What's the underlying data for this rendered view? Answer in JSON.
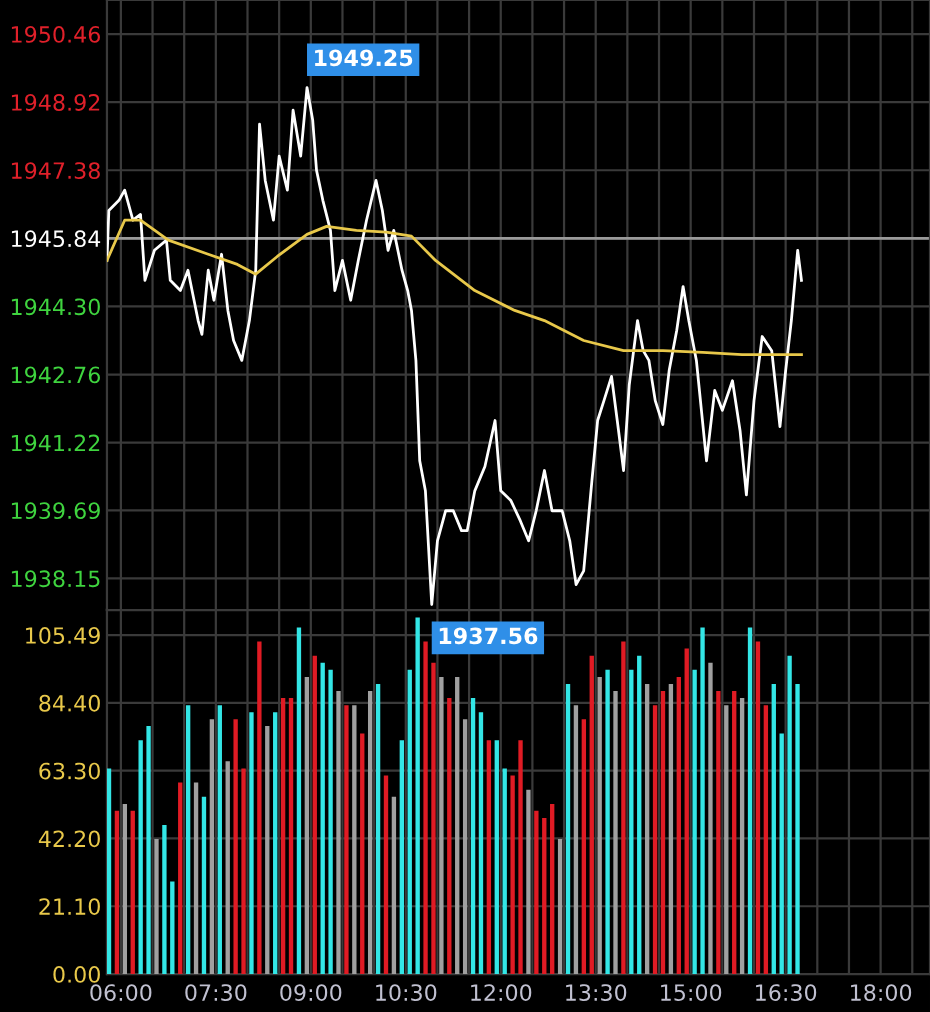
{
  "chart_data": [
    {
      "type": "line",
      "xlim": [
        5.78,
        18.78
      ],
      "ylim": [
        1937.43,
        1951.23
      ],
      "tick_labels": "y",
      "grid": true,
      "legend": false,
      "xticks": [
        {
          "value": 6,
          "label": null
        },
        {
          "value": 6.5,
          "label": null
        },
        {
          "value": 7,
          "label": null
        },
        {
          "value": 7.5,
          "label": null
        },
        {
          "value": 8,
          "label": null
        },
        {
          "value": 8.5,
          "label": null
        },
        {
          "value": 9,
          "label": null
        },
        {
          "value": 9.5,
          "label": null
        },
        {
          "value": 10,
          "label": null
        },
        {
          "value": 10.5,
          "label": null
        },
        {
          "value": 11,
          "label": null
        },
        {
          "value": 11.5,
          "label": null
        },
        {
          "value": 12,
          "label": null
        },
        {
          "value": 12.5,
          "label": null
        },
        {
          "value": 13,
          "label": null
        },
        {
          "value": 13.5,
          "label": null
        },
        {
          "value": 14,
          "label": null
        },
        {
          "value": 14.5,
          "label": null
        },
        {
          "value": 15,
          "label": null
        },
        {
          "value": 15.5,
          "label": null
        },
        {
          "value": 16,
          "label": null
        },
        {
          "value": 16.5,
          "label": null
        },
        {
          "value": 17,
          "label": null
        },
        {
          "value": 17.5,
          "label": null
        },
        {
          "value": 18,
          "label": null
        },
        {
          "value": 18.5,
          "label": null
        }
      ],
      "yticks": [
        {
          "value": 1938.15,
          "label": "1938.15"
        },
        {
          "value": 1939.69,
          "label": "1939.69"
        },
        {
          "value": 1941.22,
          "label": "1941.22"
        },
        {
          "value": 1942.76,
          "label": "1942.76"
        },
        {
          "value": 1944.3,
          "label": "1944.30"
        },
        {
          "value": 1945.84,
          "label": "1945.84"
        },
        {
          "value": 1947.38,
          "label": "1947.38"
        },
        {
          "value": 1948.92,
          "label": "1948.92"
        },
        {
          "value": 1950.46,
          "label": "1950.46"
        }
      ],
      "ref_lines": [
        {
          "axis": "y",
          "value": 1945.84,
          "label": null,
          "color": "#9a9a9a"
        }
      ],
      "annotations": [
        {
          "text": "1949.25",
          "x": 8.94,
          "y": 1949.25
        },
        {
          "text": "1937.56",
          "x": 10.91,
          "y": 1937.56
        }
      ],
      "series": [
        {
          "color": "#ffffff",
          "x": [
            5.78,
            5.81,
            5.97,
            6.06,
            6.19,
            6.31,
            6.38,
            6.53,
            6.72,
            6.78,
            6.94,
            7.06,
            7.22,
            7.28,
            7.38,
            7.47,
            7.59,
            7.69,
            7.78,
            7.91,
            8.03,
            8.13,
            8.19,
            8.28,
            8.41,
            8.5,
            8.63,
            8.72,
            8.84,
            8.94,
            9.03,
            9.09,
            9.19,
            9.31,
            9.38,
            9.5,
            9.63,
            9.75,
            9.88,
            10.03,
            10.13,
            10.22,
            10.31,
            10.44,
            10.53,
            10.59,
            10.66,
            10.72,
            10.81,
            10.91,
            11.0,
            11.13,
            11.25,
            11.38,
            11.47,
            11.59,
            11.75,
            11.91,
            12.0,
            12.16,
            12.31,
            12.44,
            12.56,
            12.69,
            12.81,
            12.97,
            13.09,
            13.19,
            13.31,
            13.44,
            13.53,
            13.63,
            13.75,
            13.84,
            13.94,
            14.03,
            14.16,
            14.25,
            14.34,
            14.44,
            14.56,
            14.66,
            14.78,
            14.88,
            14.97,
            15.09,
            15.25,
            15.38,
            15.5,
            15.66,
            15.78,
            15.88,
            16.0,
            16.13,
            16.28,
            16.41,
            16.5,
            16.59,
            16.69,
            16.75
          ],
          "values": [
            1945.34,
            1946.47,
            1946.7,
            1946.93,
            1946.25,
            1946.38,
            1944.89,
            1945.57,
            1945.8,
            1944.89,
            1944.66,
            1945.12,
            1943.98,
            1943.67,
            1945.12,
            1944.44,
            1945.48,
            1944.21,
            1943.53,
            1943.08,
            1943.98,
            1945.12,
            1948.42,
            1947.15,
            1946.25,
            1947.7,
            1946.93,
            1948.74,
            1947.7,
            1949.25,
            1948.51,
            1947.38,
            1946.7,
            1946.02,
            1944.66,
            1945.34,
            1944.44,
            1945.34,
            1946.25,
            1947.15,
            1946.47,
            1945.57,
            1946.02,
            1945.12,
            1944.66,
            1944.21,
            1943.08,
            1940.81,
            1940.13,
            1937.56,
            1939.0,
            1939.68,
            1939.68,
            1939.23,
            1939.23,
            1940.13,
            1940.68,
            1941.72,
            1940.13,
            1939.91,
            1939.45,
            1939.0,
            1939.68,
            1940.59,
            1939.68,
            1939.68,
            1939.0,
            1938.01,
            1938.32,
            1940.36,
            1941.72,
            1942.17,
            1942.72,
            1941.72,
            1940.59,
            1942.53,
            1943.98,
            1943.3,
            1943.08,
            1942.17,
            1941.63,
            1942.85,
            1943.76,
            1944.75,
            1943.98,
            1943.08,
            1940.81,
            1942.4,
            1941.95,
            1942.62,
            1941.49,
            1940.04,
            1942.17,
            1943.62,
            1943.3,
            1941.58,
            1942.85,
            1943.98,
            1945.57,
            1944.89
          ]
        },
        {
          "color": "#e8c84a",
          "x": [
            5.78,
            6.06,
            6.31,
            6.75,
            7.38,
            7.84,
            8.13,
            8.47,
            8.94,
            9.25,
            9.72,
            10.19,
            10.59,
            10.97,
            11.59,
            12.22,
            12.69,
            13.31,
            13.94,
            14.56,
            15.19,
            15.81,
            16.75
          ],
          "values": [
            1945.34,
            1946.25,
            1946.25,
            1945.8,
            1945.48,
            1945.25,
            1945.03,
            1945.43,
            1945.93,
            1946.11,
            1946.02,
            1945.98,
            1945.89,
            1945.34,
            1944.66,
            1944.21,
            1943.98,
            1943.53,
            1943.3,
            1943.3,
            1943.26,
            1943.21,
            1943.21
          ]
        }
      ]
    },
    {
      "type": "bar",
      "xlim": [
        5.78,
        18.78
      ],
      "ylim": [
        0,
        113.4
      ],
      "grid": true,
      "legend": false,
      "xticks": [
        {
          "value": 6,
          "label": "06:00"
        },
        {
          "value": 6.5,
          "label": null
        },
        {
          "value": 7,
          "label": null
        },
        {
          "value": 7.5,
          "label": "07:30"
        },
        {
          "value": 8,
          "label": null
        },
        {
          "value": 8.5,
          "label": null
        },
        {
          "value": 9,
          "label": "09:00"
        },
        {
          "value": 9.5,
          "label": null
        },
        {
          "value": 10,
          "label": null
        },
        {
          "value": 10.5,
          "label": "10:30"
        },
        {
          "value": 11,
          "label": null
        },
        {
          "value": 11.5,
          "label": null
        },
        {
          "value": 12,
          "label": "12:00"
        },
        {
          "value": 12.5,
          "label": null
        },
        {
          "value": 13,
          "label": null
        },
        {
          "value": 13.5,
          "label": "13:30"
        },
        {
          "value": 14,
          "label": null
        },
        {
          "value": 14.5,
          "label": null
        },
        {
          "value": 15,
          "label": "15:00"
        },
        {
          "value": 15.5,
          "label": null
        },
        {
          "value": 16,
          "label": null
        },
        {
          "value": 16.5,
          "label": "16:30"
        },
        {
          "value": 17,
          "label": null
        },
        {
          "value": 17.5,
          "label": null
        },
        {
          "value": 18,
          "label": "18:00"
        },
        {
          "value": 18.5,
          "label": null
        }
      ],
      "yticks": [
        {
          "value": 0,
          "label": "0.00"
        },
        {
          "value": 21.1,
          "label": "21.10"
        },
        {
          "value": 42.2,
          "label": "42.20"
        },
        {
          "value": 63.3,
          "label": "63.30"
        },
        {
          "value": 84.4,
          "label": "84.40"
        },
        {
          "value": 105.49,
          "label": "105.49"
        }
      ],
      "x": [
        5.8125,
        5.9375,
        6.0625,
        6.1875,
        6.3125,
        6.4375,
        6.5625,
        6.6875,
        6.8125,
        6.9375,
        7.0625,
        7.1875,
        7.3125,
        7.4375,
        7.5625,
        7.6875,
        7.8125,
        7.9375,
        8.0625,
        8.1875,
        8.3125,
        8.4375,
        8.5625,
        8.6875,
        8.8125,
        8.9375,
        9.0625,
        9.1875,
        9.3125,
        9.4375,
        9.5625,
        9.6875,
        9.8125,
        9.9375,
        10.0625,
        10.1875,
        10.3125,
        10.4375,
        10.5625,
        10.6875,
        10.8125,
        10.9375,
        11.0625,
        11.1875,
        11.3125,
        11.4375,
        11.5625,
        11.6875,
        11.8125,
        11.9375,
        12.0625,
        12.1875,
        12.3125,
        12.4375,
        12.5625,
        12.6875,
        12.8125,
        12.9375,
        13.0625,
        13.1875,
        13.3125,
        13.4375,
        13.5625,
        13.6875,
        13.8125,
        13.9375,
        14.0625,
        14.1875,
        14.3125,
        14.4375,
        14.5625,
        14.6875,
        14.8125,
        14.9375,
        15.0625,
        15.1875,
        15.3125,
        15.4375,
        15.5625,
        15.6875,
        15.8125,
        15.9375,
        16.0625,
        16.1875,
        16.3125,
        16.4375,
        16.5625,
        16.6875
      ],
      "values": [
        64.0,
        50.8,
        52.9,
        50.8,
        72.8,
        77.2,
        42.0,
        46.4,
        28.8,
        59.6,
        83.7,
        59.6,
        55.2,
        79.3,
        83.7,
        66.2,
        79.3,
        64.0,
        81.5,
        103.5,
        77.2,
        81.5,
        85.9,
        85.9,
        107.9,
        92.5,
        99.1,
        96.9,
        94.7,
        88.1,
        83.7,
        83.7,
        74.9,
        88.1,
        90.3,
        61.8,
        55.2,
        72.8,
        94.7,
        111.0,
        103.5,
        96.9,
        92.5,
        85.9,
        92.5,
        79.3,
        85.9,
        81.5,
        72.8,
        72.8,
        64.0,
        61.8,
        72.8,
        57.4,
        50.8,
        48.6,
        52.9,
        42.0,
        90.3,
        83.7,
        79.3,
        99.1,
        92.5,
        94.7,
        88.1,
        103.5,
        94.7,
        99.1,
        90.3,
        83.7,
        88.1,
        90.3,
        92.5,
        101.3,
        94.7,
        107.9,
        96.9,
        88.1,
        83.7,
        88.1,
        85.9,
        107.9,
        103.5,
        83.7,
        90.3,
        74.9,
        99.1,
        90.3
      ],
      "colors": [
        "#33e6e6",
        "#e01b24",
        "#a0a0a0",
        "#e01b24",
        "#33e6e6",
        "#33e6e6",
        "#a0a0a0",
        "#33e6e6",
        "#33e6e6",
        "#e01b24",
        "#33e6e6",
        "#a0a0a0",
        "#33e6e6",
        "#a0a0a0",
        "#33e6e6",
        "#a0a0a0",
        "#e01b24",
        "#e01b24",
        "#33e6e6",
        "#e01b24",
        "#a0a0a0",
        "#33e6e6",
        "#e01b24",
        "#e01b24",
        "#33e6e6",
        "#a0a0a0",
        "#e01b24",
        "#33e6e6",
        "#33e6e6",
        "#a0a0a0",
        "#e01b24",
        "#a0a0a0",
        "#e01b24",
        "#a0a0a0",
        "#33e6e6",
        "#e01b24",
        "#a0a0a0",
        "#33e6e6",
        "#33e6e6",
        "#33e6e6",
        "#e01b24",
        "#e01b24",
        "#a0a0a0",
        "#e01b24",
        "#a0a0a0",
        "#a0a0a0",
        "#33e6e6",
        "#33e6e6",
        "#e01b24",
        "#33e6e6",
        "#33e6e6",
        "#e01b24",
        "#e01b24",
        "#a0a0a0",
        "#e01b24",
        "#e01b24",
        "#e01b24",
        "#a0a0a0",
        "#33e6e6",
        "#a0a0a0",
        "#e01b24",
        "#e01b24",
        "#a0a0a0",
        "#33e6e6",
        "#a0a0a0",
        "#e01b24",
        "#33e6e6",
        "#33e6e6",
        "#a0a0a0",
        "#e01b24",
        "#e01b24",
        "#a0a0a0",
        "#e01b24",
        "#e01b24",
        "#33e6e6",
        "#33e6e6",
        "#a0a0a0",
        "#e01b24",
        "#a0a0a0",
        "#e01b24",
        "#a0a0a0",
        "#33e6e6",
        "#e01b24",
        "#e01b24",
        "#33e6e6",
        "#33e6e6",
        "#33e6e6",
        "#33e6e6"
      ]
    }
  ]
}
